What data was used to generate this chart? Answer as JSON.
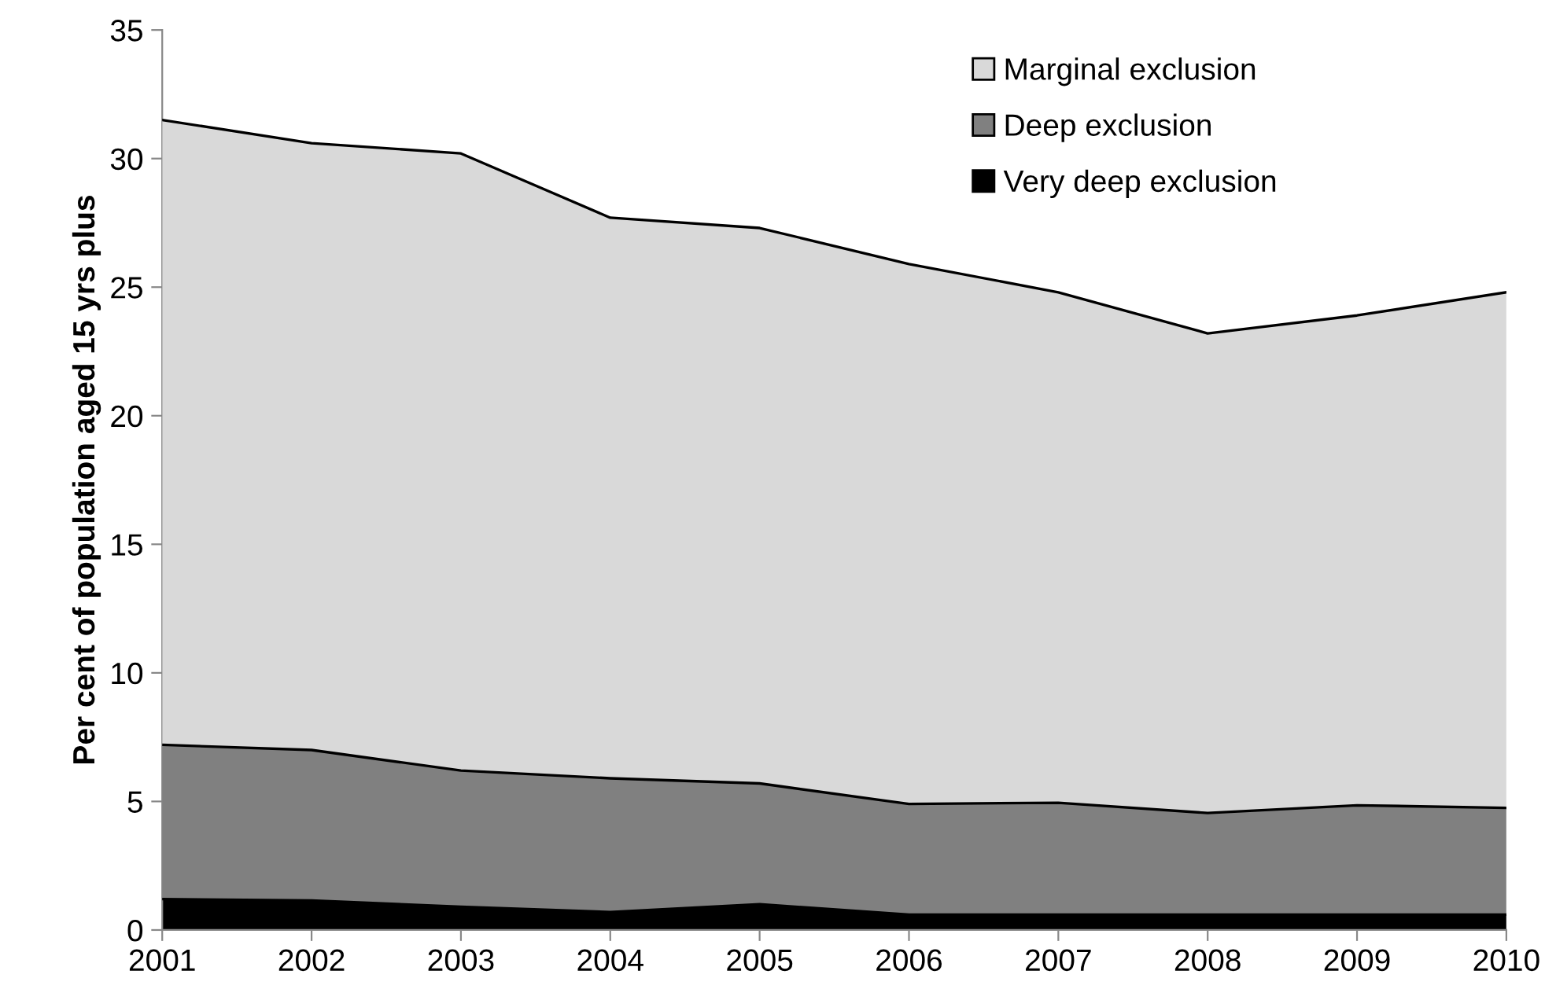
{
  "chart_data": {
    "type": "area",
    "stacked": true,
    "ylabel": "Per cent of population aged 15 yrs plus",
    "x": [
      2001,
      2002,
      2003,
      2004,
      2005,
      2006,
      2007,
      2008,
      2009,
      2010
    ],
    "xlim": [
      2001,
      2010
    ],
    "xticks": [
      2001,
      2002,
      2003,
      2004,
      2005,
      2006,
      2007,
      2008,
      2009,
      2010
    ],
    "ylim": [
      0,
      35
    ],
    "yticks": [
      0,
      5,
      10,
      15,
      20,
      25,
      30,
      35
    ],
    "series": [
      {
        "name": "Very deep exclusion",
        "color": "#000000",
        "values": [
          1.2,
          1.15,
          0.9,
          0.7,
          1.0,
          0.6,
          0.6,
          0.6,
          0.6,
          0.6
        ]
      },
      {
        "name": "Deep exclusion",
        "color": "#808080",
        "values": [
          6.0,
          5.85,
          5.3,
          5.2,
          4.7,
          4.3,
          4.35,
          3.95,
          4.25,
          4.15
        ]
      },
      {
        "name": "Marginal exclusion",
        "color": "#d9d9d9",
        "values": [
          24.3,
          23.6,
          24.0,
          21.8,
          21.6,
          21.0,
          19.85,
          18.65,
          19.05,
          20.05
        ]
      }
    ],
    "legend": "top right",
    "grid": false
  }
}
